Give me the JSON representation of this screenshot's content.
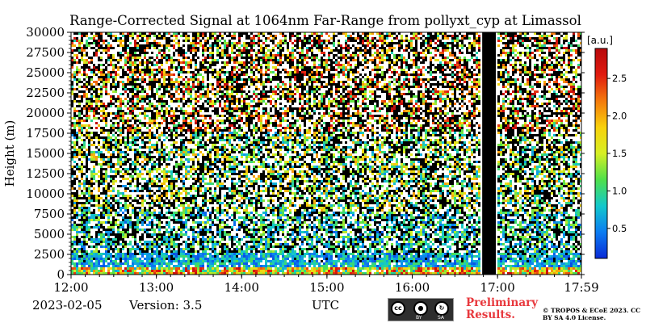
{
  "chart_data": {
    "type": "heatmap",
    "title": "Range-Corrected Signal at 1064nm Far-Range from pollyxt_cyp at Limassol",
    "xlabel": "UTC",
    "ylabel": "Height (m)",
    "x_ticks": [
      "12:00",
      "13:00",
      "14:00",
      "15:00",
      "16:00",
      "17:00",
      "17:59"
    ],
    "x_range_hours": [
      12.0,
      17.983
    ],
    "y_ticks": [
      0,
      2500,
      5000,
      7500,
      10000,
      12500,
      15000,
      17500,
      20000,
      22500,
      25000,
      27500,
      30000
    ],
    "y_range": [
      0,
      30000
    ],
    "colorbar": {
      "label": "[a.u.]",
      "ticks": [
        "0.5",
        "1.0",
        "1.5",
        "2.0",
        "2.5"
      ],
      "tick_values": [
        0.5,
        1.0,
        1.5,
        2.0,
        2.5
      ],
      "range": [
        0.1,
        2.9
      ],
      "colormap": [
        "#0a2ad6",
        "#0b7cf2",
        "#12c8cc",
        "#4fe04a",
        "#d7ef24",
        "#f8d10c",
        "#f47a0c",
        "#e01a0f",
        "#b8090b"
      ]
    },
    "no_data_interval": [
      16.82,
      16.98
    ],
    "no_data_color": "#000000",
    "grid": false,
    "features": {
      "boundary_layer_top_m": 1000,
      "aerosol_layer_top_m": 3000,
      "noise_background": "speckled high-altitude noise"
    }
  },
  "footer": {
    "date": "2023-02-05",
    "version": "Version: 3.5",
    "preliminary": "Preliminary Results.",
    "license": "© TROPOS & ECoE 2023. CC BY SA 4.0 License.",
    "cc_badge": {
      "cc": "cc",
      "by": "BY",
      "sa": "SA"
    }
  }
}
